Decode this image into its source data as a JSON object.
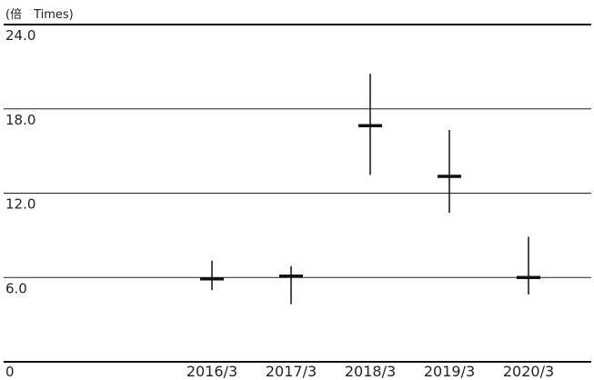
{
  "chart_data": {
    "type": "range",
    "unit_label": "(倍　Times)",
    "y_ticks": [
      "24.0",
      "18.0",
      "12.0",
      "6.0",
      "0"
    ],
    "y_tick_values": [
      24,
      18,
      12,
      6,
      0
    ],
    "ylim": [
      0,
      24
    ],
    "grid": true,
    "categories": [
      "2016/3",
      "2017/3",
      "2018/3",
      "2019/3",
      "2020/3"
    ],
    "series": [
      {
        "high": [
          7.2,
          6.8,
          20.5,
          16.5,
          8.9
        ],
        "low": [
          5.1,
          4.1,
          13.3,
          10.6,
          4.8
        ],
        "marker": [
          5.9,
          6.1,
          16.8,
          13.2,
          6.0
        ]
      }
    ]
  }
}
